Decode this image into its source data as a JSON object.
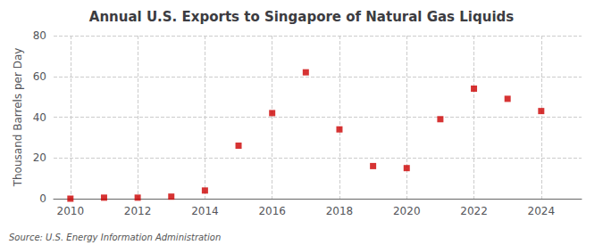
{
  "chart_data": {
    "type": "scatter",
    "title": "Annual U.S. Exports to Singapore of Natural Gas Liquids",
    "ylabel": "Thousand Barrels per Day",
    "annotations": [
      "Source: U.S. Energy Information Administration"
    ],
    "x": [
      2010,
      2011,
      2012,
      2013,
      2014,
      2015,
      2016,
      2017,
      2018,
      2019,
      2020,
      2021,
      2022,
      2023,
      2024
    ],
    "values": [
      0,
      0.5,
      0.5,
      1,
      4,
      26,
      42,
      62,
      34,
      16,
      15,
      39,
      54,
      49,
      43
    ],
    "color": "#cc0000",
    "marker": "square",
    "xlim": [
      2009.5,
      2025.2
    ],
    "xticks": [
      2010,
      2012,
      2014,
      2016,
      2018,
      2020,
      2022,
      2024
    ],
    "ylim": [
      0,
      80
    ],
    "yticks": [
      0,
      20,
      40,
      60,
      80
    ],
    "grid": true
  }
}
